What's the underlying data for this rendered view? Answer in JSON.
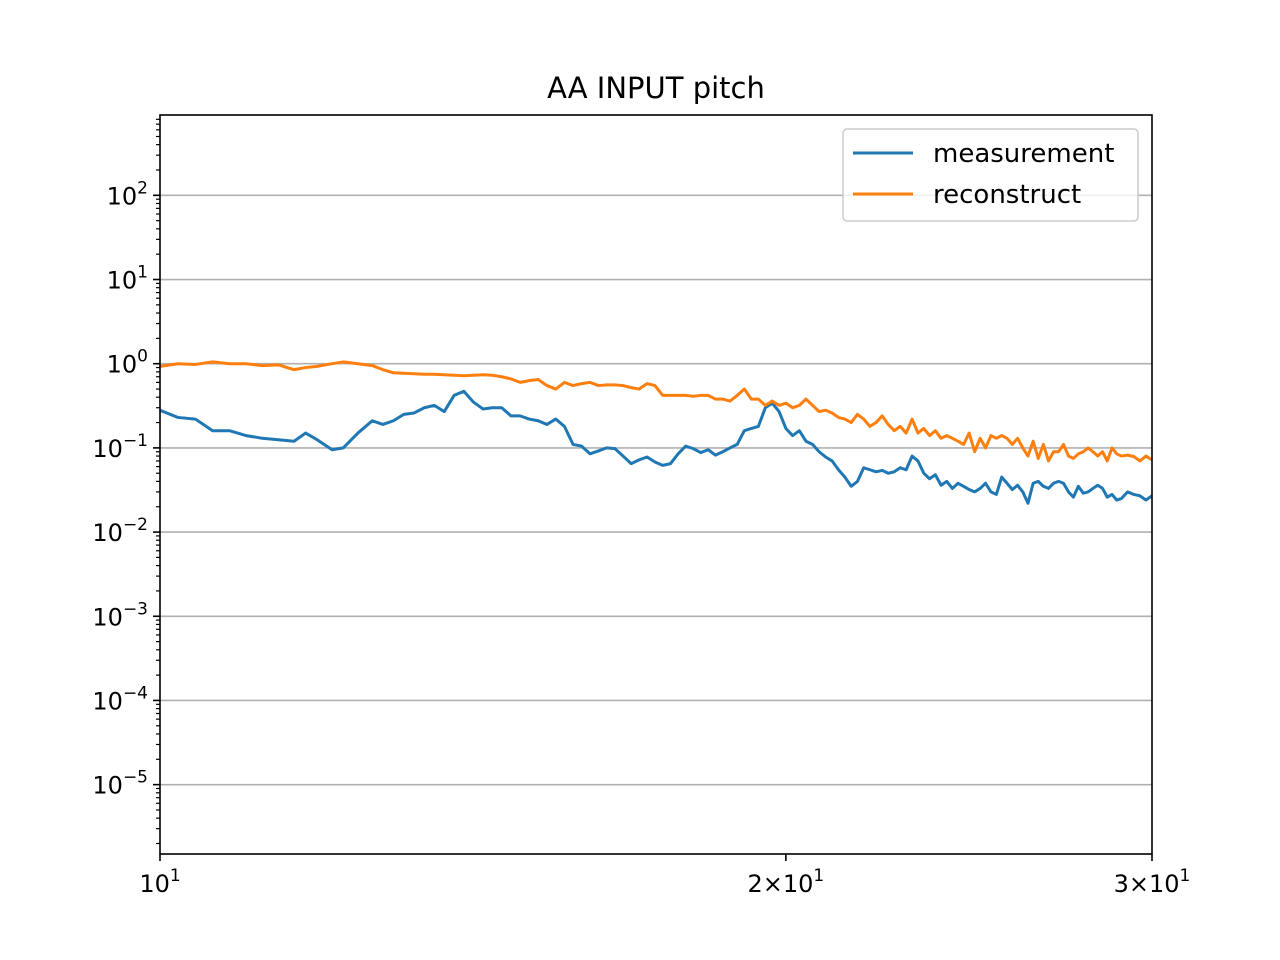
{
  "chart_data": {
    "type": "line",
    "title": "AA INPUT pitch",
    "xlabel": "",
    "ylabel": "",
    "x_scale": "log",
    "y_scale": "log",
    "xlim": [
      10,
      30
    ],
    "ylim": [
      1.5e-06,
      900
    ],
    "grid": "horizontal major",
    "legend_position": "top-right",
    "x_ticks": [
      {
        "value": 10,
        "base": "10",
        "exp": "1",
        "mult": ""
      },
      {
        "value": 20,
        "base": "10",
        "exp": "1",
        "mult": "2×"
      },
      {
        "value": 30,
        "base": "10",
        "exp": "1",
        "mult": "3×"
      }
    ],
    "y_ticks": [
      {
        "value": 100,
        "base": "10",
        "exp": "2"
      },
      {
        "value": 10,
        "base": "10",
        "exp": "1"
      },
      {
        "value": 1,
        "base": "10",
        "exp": "0"
      },
      {
        "value": 0.1,
        "base": "10",
        "exp": "−1"
      },
      {
        "value": 0.01,
        "base": "10",
        "exp": "−2"
      },
      {
        "value": 0.001,
        "base": "10",
        "exp": "−3"
      },
      {
        "value": 0.0001,
        "base": "10",
        "exp": "−4"
      },
      {
        "value": 1e-05,
        "base": "10",
        "exp": "−5"
      }
    ],
    "series": [
      {
        "name": "measurement",
        "color": "#1f77b4",
        "points": [
          [
            10.0,
            0.28
          ],
          [
            10.2,
            0.23
          ],
          [
            10.4,
            0.22
          ],
          [
            10.6,
            0.16
          ],
          [
            10.8,
            0.16
          ],
          [
            11.0,
            0.14
          ],
          [
            11.2,
            0.13
          ],
          [
            11.4,
            0.125
          ],
          [
            11.6,
            0.12
          ],
          [
            11.75,
            0.15
          ],
          [
            11.9,
            0.125
          ],
          [
            12.1,
            0.095
          ],
          [
            12.25,
            0.1
          ],
          [
            12.45,
            0.15
          ],
          [
            12.65,
            0.21
          ],
          [
            12.8,
            0.19
          ],
          [
            12.95,
            0.21
          ],
          [
            13.1,
            0.25
          ],
          [
            13.25,
            0.26
          ],
          [
            13.4,
            0.3
          ],
          [
            13.55,
            0.32
          ],
          [
            13.7,
            0.27
          ],
          [
            13.85,
            0.42
          ],
          [
            14.0,
            0.47
          ],
          [
            14.15,
            0.35
          ],
          [
            14.3,
            0.29
          ],
          [
            14.45,
            0.3
          ],
          [
            14.6,
            0.3
          ],
          [
            14.75,
            0.24
          ],
          [
            14.9,
            0.24
          ],
          [
            15.05,
            0.22
          ],
          [
            15.2,
            0.21
          ],
          [
            15.35,
            0.19
          ],
          [
            15.5,
            0.22
          ],
          [
            15.65,
            0.18
          ],
          [
            15.8,
            0.11
          ],
          [
            15.95,
            0.105
          ],
          [
            16.1,
            0.085
          ],
          [
            16.25,
            0.092
          ],
          [
            16.4,
            0.1
          ],
          [
            16.55,
            0.098
          ],
          [
            16.7,
            0.08
          ],
          [
            16.85,
            0.065
          ],
          [
            17.0,
            0.072
          ],
          [
            17.15,
            0.078
          ],
          [
            17.3,
            0.068
          ],
          [
            17.45,
            0.062
          ],
          [
            17.6,
            0.065
          ],
          [
            17.75,
            0.085
          ],
          [
            17.9,
            0.105
          ],
          [
            18.05,
            0.098
          ],
          [
            18.2,
            0.088
          ],
          [
            18.35,
            0.095
          ],
          [
            18.5,
            0.082
          ],
          [
            18.65,
            0.09
          ],
          [
            18.8,
            0.1
          ],
          [
            18.95,
            0.11
          ],
          [
            19.1,
            0.16
          ],
          [
            19.25,
            0.17
          ],
          [
            19.4,
            0.18
          ],
          [
            19.55,
            0.3
          ],
          [
            19.7,
            0.34
          ],
          [
            19.85,
            0.27
          ],
          [
            20.0,
            0.17
          ],
          [
            20.15,
            0.14
          ],
          [
            20.3,
            0.16
          ],
          [
            20.45,
            0.12
          ],
          [
            20.6,
            0.11
          ],
          [
            20.75,
            0.09
          ],
          [
            20.9,
            0.078
          ],
          [
            21.05,
            0.07
          ],
          [
            21.2,
            0.055
          ],
          [
            21.35,
            0.045
          ],
          [
            21.5,
            0.035
          ],
          [
            21.65,
            0.04
          ],
          [
            21.8,
            0.058
          ],
          [
            21.95,
            0.055
          ],
          [
            22.1,
            0.052
          ],
          [
            22.25,
            0.054
          ],
          [
            22.4,
            0.05
          ],
          [
            22.55,
            0.052
          ],
          [
            22.7,
            0.058
          ],
          [
            22.85,
            0.055
          ],
          [
            23.0,
            0.08
          ],
          [
            23.15,
            0.07
          ],
          [
            23.3,
            0.05
          ],
          [
            23.45,
            0.043
          ],
          [
            23.6,
            0.048
          ],
          [
            23.75,
            0.036
          ],
          [
            23.9,
            0.04
          ],
          [
            24.05,
            0.033
          ],
          [
            24.2,
            0.038
          ],
          [
            24.35,
            0.035
          ],
          [
            24.5,
            0.032
          ],
          [
            24.65,
            0.03
          ],
          [
            24.8,
            0.033
          ],
          [
            24.95,
            0.038
          ],
          [
            25.1,
            0.03
          ],
          [
            25.25,
            0.028
          ],
          [
            25.4,
            0.045
          ],
          [
            25.55,
            0.038
          ],
          [
            25.7,
            0.032
          ],
          [
            25.85,
            0.036
          ],
          [
            26.0,
            0.03
          ],
          [
            26.15,
            0.022
          ],
          [
            26.3,
            0.038
          ],
          [
            26.45,
            0.04
          ],
          [
            26.6,
            0.035
          ],
          [
            26.75,
            0.033
          ],
          [
            26.9,
            0.038
          ],
          [
            27.05,
            0.04
          ],
          [
            27.2,
            0.038
          ],
          [
            27.35,
            0.03
          ],
          [
            27.5,
            0.026
          ],
          [
            27.65,
            0.035
          ],
          [
            27.8,
            0.029
          ],
          [
            27.95,
            0.03
          ],
          [
            28.1,
            0.033
          ],
          [
            28.25,
            0.036
          ],
          [
            28.4,
            0.033
          ],
          [
            28.55,
            0.026
          ],
          [
            28.7,
            0.028
          ],
          [
            28.85,
            0.024
          ],
          [
            29.0,
            0.025
          ],
          [
            29.2,
            0.03
          ],
          [
            29.4,
            0.028
          ],
          [
            29.6,
            0.027
          ],
          [
            29.8,
            0.024
          ],
          [
            30.0,
            0.027
          ]
        ]
      },
      {
        "name": "reconstruct",
        "color": "#ff7f0e",
        "points": [
          [
            10.0,
            0.93
          ],
          [
            10.2,
            1.0
          ],
          [
            10.4,
            0.98
          ],
          [
            10.6,
            1.05
          ],
          [
            10.8,
            1.0
          ],
          [
            11.0,
            1.0
          ],
          [
            11.2,
            0.95
          ],
          [
            11.4,
            0.97
          ],
          [
            11.6,
            0.85
          ],
          [
            11.75,
            0.9
          ],
          [
            11.9,
            0.93
          ],
          [
            12.1,
            1.0
          ],
          [
            12.25,
            1.05
          ],
          [
            12.45,
            1.0
          ],
          [
            12.65,
            0.95
          ],
          [
            12.8,
            0.85
          ],
          [
            12.95,
            0.78
          ],
          [
            13.1,
            0.77
          ],
          [
            13.25,
            0.76
          ],
          [
            13.4,
            0.75
          ],
          [
            13.55,
            0.75
          ],
          [
            13.7,
            0.74
          ],
          [
            13.85,
            0.73
          ],
          [
            14.0,
            0.72
          ],
          [
            14.15,
            0.73
          ],
          [
            14.3,
            0.74
          ],
          [
            14.45,
            0.73
          ],
          [
            14.6,
            0.7
          ],
          [
            14.75,
            0.66
          ],
          [
            14.9,
            0.6
          ],
          [
            15.05,
            0.63
          ],
          [
            15.2,
            0.65
          ],
          [
            15.35,
            0.55
          ],
          [
            15.5,
            0.5
          ],
          [
            15.65,
            0.6
          ],
          [
            15.8,
            0.55
          ],
          [
            15.95,
            0.58
          ],
          [
            16.1,
            0.6
          ],
          [
            16.25,
            0.55
          ],
          [
            16.4,
            0.56
          ],
          [
            16.55,
            0.56
          ],
          [
            16.7,
            0.55
          ],
          [
            16.85,
            0.52
          ],
          [
            17.0,
            0.5
          ],
          [
            17.15,
            0.58
          ],
          [
            17.3,
            0.55
          ],
          [
            17.45,
            0.42
          ],
          [
            17.6,
            0.42
          ],
          [
            17.75,
            0.42
          ],
          [
            17.9,
            0.42
          ],
          [
            18.05,
            0.41
          ],
          [
            18.2,
            0.42
          ],
          [
            18.35,
            0.42
          ],
          [
            18.5,
            0.38
          ],
          [
            18.65,
            0.38
          ],
          [
            18.8,
            0.36
          ],
          [
            18.95,
            0.42
          ],
          [
            19.1,
            0.5
          ],
          [
            19.25,
            0.38
          ],
          [
            19.4,
            0.38
          ],
          [
            19.55,
            0.32
          ],
          [
            19.7,
            0.36
          ],
          [
            19.85,
            0.32
          ],
          [
            20.0,
            0.34
          ],
          [
            20.15,
            0.3
          ],
          [
            20.3,
            0.32
          ],
          [
            20.45,
            0.38
          ],
          [
            20.6,
            0.32
          ],
          [
            20.75,
            0.27
          ],
          [
            20.9,
            0.28
          ],
          [
            21.05,
            0.26
          ],
          [
            21.2,
            0.23
          ],
          [
            21.35,
            0.22
          ],
          [
            21.5,
            0.2
          ],
          [
            21.65,
            0.25
          ],
          [
            21.8,
            0.22
          ],
          [
            21.95,
            0.18
          ],
          [
            22.1,
            0.2
          ],
          [
            22.25,
            0.24
          ],
          [
            22.4,
            0.19
          ],
          [
            22.55,
            0.16
          ],
          [
            22.7,
            0.18
          ],
          [
            22.85,
            0.15
          ],
          [
            23.0,
            0.22
          ],
          [
            23.15,
            0.15
          ],
          [
            23.3,
            0.17
          ],
          [
            23.45,
            0.14
          ],
          [
            23.6,
            0.16
          ],
          [
            23.75,
            0.13
          ],
          [
            23.9,
            0.14
          ],
          [
            24.05,
            0.13
          ],
          [
            24.2,
            0.12
          ],
          [
            24.35,
            0.11
          ],
          [
            24.5,
            0.15
          ],
          [
            24.65,
            0.09
          ],
          [
            24.8,
            0.13
          ],
          [
            24.95,
            0.1
          ],
          [
            25.1,
            0.14
          ],
          [
            25.25,
            0.13
          ],
          [
            25.4,
            0.14
          ],
          [
            25.55,
            0.13
          ],
          [
            25.7,
            0.11
          ],
          [
            25.85,
            0.13
          ],
          [
            26.0,
            0.1
          ],
          [
            26.15,
            0.08
          ],
          [
            26.3,
            0.12
          ],
          [
            26.45,
            0.075
          ],
          [
            26.6,
            0.11
          ],
          [
            26.75,
            0.07
          ],
          [
            26.9,
            0.09
          ],
          [
            27.05,
            0.09
          ],
          [
            27.2,
            0.11
          ],
          [
            27.35,
            0.08
          ],
          [
            27.5,
            0.075
          ],
          [
            27.65,
            0.085
          ],
          [
            27.8,
            0.09
          ],
          [
            27.95,
            0.1
          ],
          [
            28.1,
            0.09
          ],
          [
            28.25,
            0.08
          ],
          [
            28.4,
            0.09
          ],
          [
            28.55,
            0.07
          ],
          [
            28.7,
            0.1
          ],
          [
            28.85,
            0.085
          ],
          [
            29.0,
            0.08
          ],
          [
            29.2,
            0.082
          ],
          [
            29.4,
            0.079
          ],
          [
            29.6,
            0.07
          ],
          [
            29.8,
            0.08
          ],
          [
            30.0,
            0.072
          ]
        ]
      }
    ]
  }
}
